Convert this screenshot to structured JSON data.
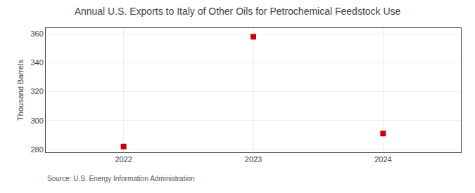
{
  "chart_data": {
    "type": "scatter",
    "title": "Annual U.S. Exports to Italy of Other Oils for Petrochemical Feedstock Use",
    "ylabel": "Thousand Barrels",
    "annotations": [
      "Source: U.S. Energy Information Administration"
    ],
    "x": [
      2022,
      2023,
      2024
    ],
    "values": [
      282,
      358,
      291
    ],
    "color": "#cc0000",
    "marker": "square",
    "xlim": [
      2021.4,
      2024.6
    ],
    "xticks": [
      2022,
      2023,
      2024
    ],
    "ylim": [
      278,
      364
    ],
    "yticks": [
      280,
      300,
      320,
      340,
      360
    ],
    "grid": true
  }
}
